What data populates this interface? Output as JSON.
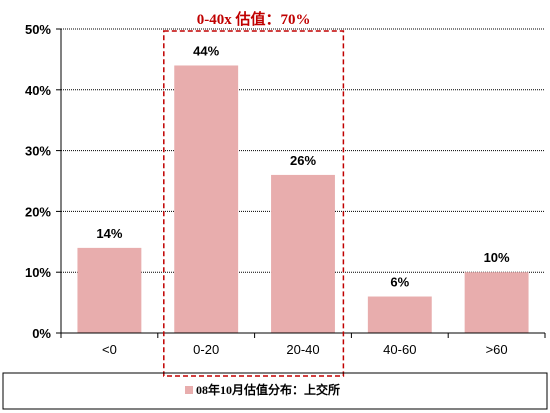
{
  "chart_data": {
    "type": "bar",
    "categories": [
      "<0",
      "0-20",
      "20-40",
      "40-60",
      ">60"
    ],
    "values": [
      14,
      44,
      26,
      6,
      10
    ],
    "value_labels": [
      "14%",
      "44%",
      "26%",
      "6%",
      "10%"
    ],
    "ylim": [
      0,
      50
    ],
    "yticks": [
      0,
      10,
      20,
      30,
      40,
      50
    ],
    "ytick_labels": [
      "0%",
      "10%",
      "20%",
      "30%",
      "40%",
      "50%"
    ],
    "grid": true,
    "bar_color": "#e8adad",
    "legend": {
      "position": "bottom",
      "label": "08年10月估值分布：上交所"
    },
    "annotation": {
      "text": "0-40x 估值：70%",
      "color": "#c00000",
      "style": "dashed box",
      "spans_categories": [
        "0-20",
        "20-40"
      ]
    }
  }
}
